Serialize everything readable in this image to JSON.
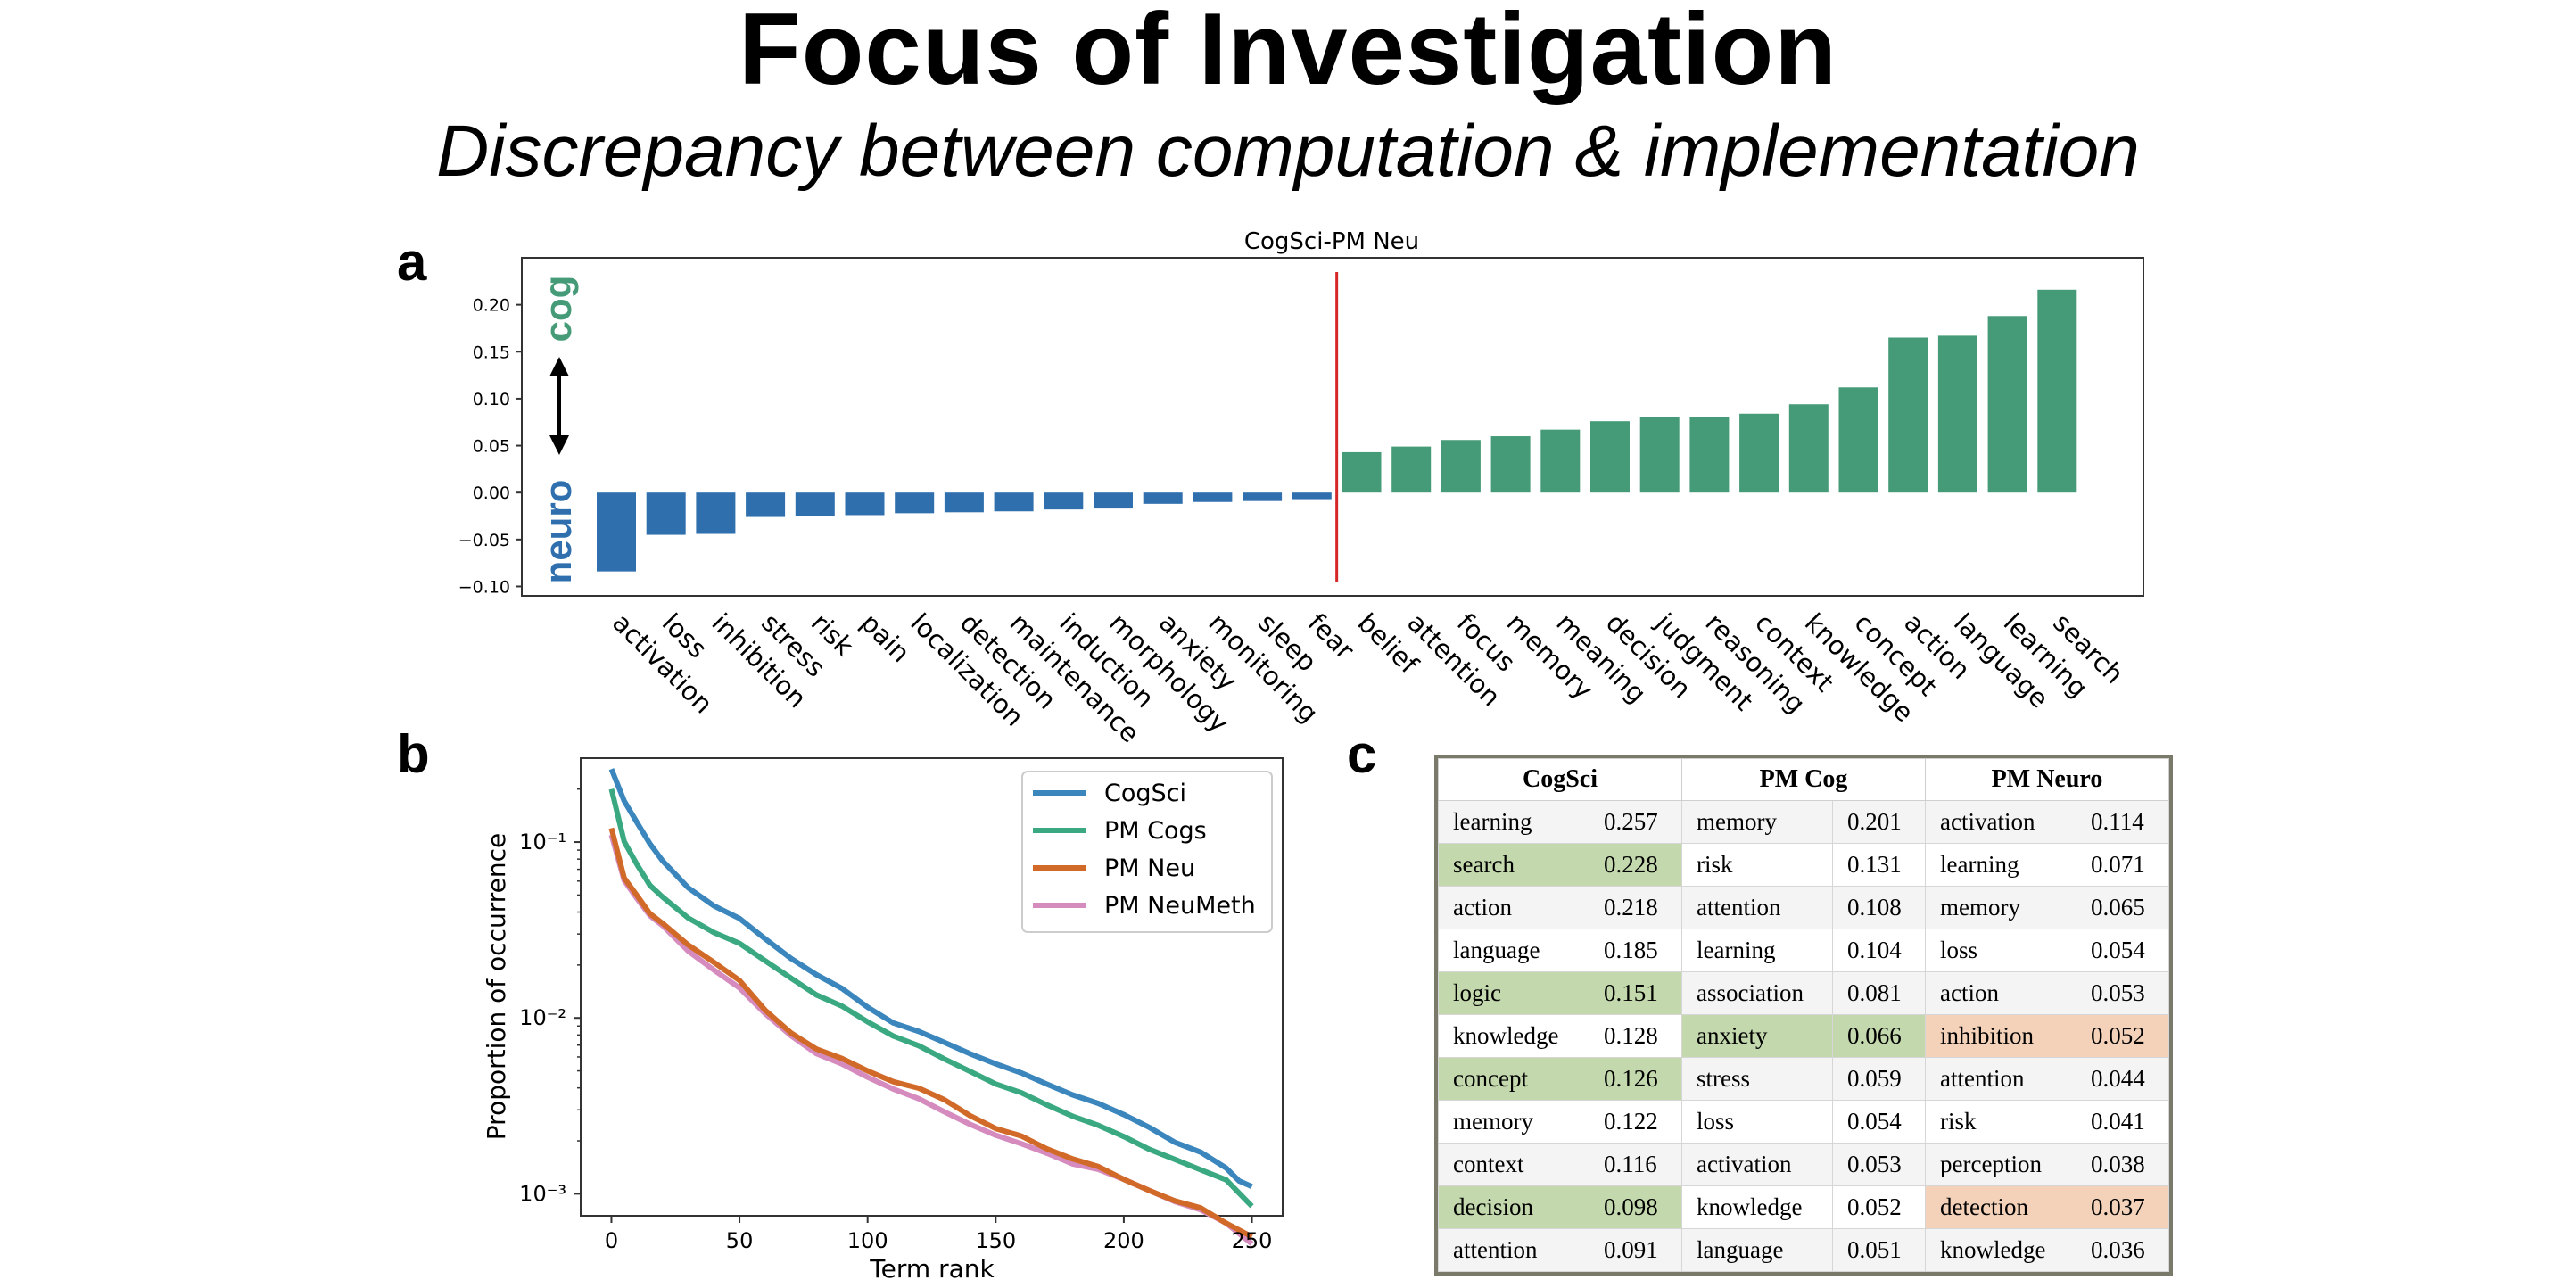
{
  "slide": {
    "title": "Focus of Investigation",
    "subtitle": "Discrepancy between computation & implementation",
    "panel_a_letter": "a",
    "panel_b_letter": "b",
    "panel_c_letter": "c"
  },
  "chart_data": [
    {
      "type": "bar",
      "title": "CogSci-PM Neu",
      "categories": [
        "activation",
        "loss",
        "inhibition",
        "stress",
        "risk",
        "pain",
        "localization",
        "detection",
        "maintenance",
        "induction",
        "morphology",
        "anxiety",
        "monitoring",
        "sleep",
        "fear",
        "belief",
        "attention",
        "focus",
        "memory",
        "meaning",
        "decision",
        "judgment",
        "reasoning",
        "context",
        "knowledge",
        "concept",
        "action",
        "language",
        "learning",
        "search"
      ],
      "values": [
        -0.084,
        -0.045,
        -0.044,
        -0.026,
        -0.025,
        -0.024,
        -0.022,
        -0.021,
        -0.02,
        -0.018,
        -0.017,
        -0.012,
        -0.01,
        -0.009,
        -0.007,
        0.043,
        0.049,
        0.056,
        0.06,
        0.067,
        0.076,
        0.08,
        0.08,
        0.084,
        0.094,
        0.112,
        0.165,
        0.167,
        0.188,
        0.216
      ],
      "ylim": [
        -0.11,
        0.25
      ],
      "yticks": [
        -0.1,
        -0.05,
        0.0,
        0.05,
        0.1,
        0.15,
        0.2
      ],
      "ytick_labels": [
        "−0.10",
        "−0.05",
        "0.00",
        "0.05",
        "0.10",
        "0.15",
        "0.20"
      ],
      "colors": {
        "negative": "#2f6fae",
        "positive": "#459b77",
        "divider": "#d62728"
      },
      "side_labels": {
        "top": "cog",
        "bottom": "neuro",
        "top_color": "#459b77",
        "bottom_color": "#2f6fae"
      }
    },
    {
      "type": "line",
      "xlabel": "Term rank",
      "ylabel": "Proportion of occurrence",
      "yscale": "log",
      "xlim": [
        -12,
        262
      ],
      "ylim": [
        0.00075,
        0.3
      ],
      "xticks": [
        0,
        50,
        100,
        150,
        200,
        250
      ],
      "yticks": [
        0.001,
        0.01,
        0.1
      ],
      "ytick_labels": [
        "10⁻³",
        "10⁻²",
        "10⁻¹"
      ],
      "legend_position": "top-right",
      "series": [
        {
          "name": "CogSci",
          "color": "#3a86bd",
          "x": [
            0,
            5,
            10,
            15,
            20,
            30,
            40,
            50,
            60,
            70,
            80,
            90,
            100,
            110,
            120,
            130,
            140,
            150,
            160,
            170,
            180,
            190,
            200,
            210,
            220,
            230,
            240,
            245,
            250
          ],
          "y": [
            0.26,
            0.17,
            0.13,
            0.1,
            0.077,
            0.055,
            0.044,
            0.036,
            0.028,
            0.022,
            0.018,
            0.0145,
            0.0115,
            0.0095,
            0.0082,
            0.0072,
            0.0063,
            0.0056,
            0.0048,
            0.0042,
            0.0037,
            0.0032,
            0.0028,
            0.0024,
            0.002,
            0.0017,
            0.0014,
            0.0012,
            0.0011
          ]
        },
        {
          "name": "PM Cogs",
          "color": "#3aa982",
          "x": [
            0,
            5,
            10,
            15,
            20,
            30,
            40,
            50,
            60,
            70,
            80,
            90,
            100,
            110,
            120,
            130,
            140,
            150,
            160,
            170,
            180,
            190,
            200,
            210,
            220,
            230,
            240,
            250
          ],
          "y": [
            0.2,
            0.1,
            0.075,
            0.058,
            0.048,
            0.037,
            0.031,
            0.026,
            0.021,
            0.017,
            0.0138,
            0.0115,
            0.0095,
            0.008,
            0.0068,
            0.0058,
            0.005,
            0.0043,
            0.0037,
            0.0032,
            0.0028,
            0.0024,
            0.0021,
            0.0018,
            0.0016,
            0.00135,
            0.0012,
            0.00085
          ]
        },
        {
          "name": "PM Neu",
          "color": "#d16a28",
          "x": [
            0,
            5,
            10,
            15,
            20,
            30,
            40,
            50,
            60,
            70,
            80,
            90,
            100,
            110,
            120,
            130,
            140,
            150,
            160,
            170,
            180,
            190,
            200,
            210,
            220,
            230,
            240,
            250
          ],
          "y": [
            0.12,
            0.062,
            0.05,
            0.04,
            0.034,
            0.026,
            0.021,
            0.016,
            0.011,
            0.0083,
            0.0068,
            0.0058,
            0.005,
            0.0044,
            0.0039,
            0.0034,
            0.0028,
            0.0024,
            0.0021,
            0.0018,
            0.0016,
            0.0014,
            0.0012,
            0.00105,
            0.00093,
            0.00082,
            0.00068,
            0.00057
          ]
        },
        {
          "name": "PM NeuMeth",
          "color": "#d58bbd",
          "x": [
            0,
            5,
            10,
            15,
            20,
            30,
            40,
            50,
            60,
            70,
            80,
            90,
            100,
            110,
            120,
            130,
            140,
            150,
            160,
            170,
            180,
            190,
            200,
            210,
            220,
            230,
            240,
            250
          ],
          "y": [
            0.11,
            0.06,
            0.048,
            0.039,
            0.033,
            0.024,
            0.019,
            0.0145,
            0.0105,
            0.008,
            0.0064,
            0.0054,
            0.0046,
            0.004,
            0.0034,
            0.0029,
            0.0025,
            0.0022,
            0.0019,
            0.0017,
            0.0015,
            0.00135,
            0.0012,
            0.00105,
            0.00092,
            0.0008,
            0.00068,
            0.00052
          ]
        }
      ]
    },
    {
      "type": "table",
      "columns": [
        "CogSci",
        "PM Cog",
        "PM Neuro"
      ],
      "rows": [
        [
          {
            "term": "learning",
            "value": "0.257"
          },
          {
            "term": "memory",
            "value": "0.201"
          },
          {
            "term": "activation",
            "value": "0.114"
          }
        ],
        [
          {
            "term": "search",
            "value": "0.228",
            "highlight": "green"
          },
          {
            "term": "risk",
            "value": "0.131"
          },
          {
            "term": "learning",
            "value": "0.071"
          }
        ],
        [
          {
            "term": "action",
            "value": "0.218"
          },
          {
            "term": "attention",
            "value": "0.108"
          },
          {
            "term": "memory",
            "value": "0.065"
          }
        ],
        [
          {
            "term": "language",
            "value": "0.185"
          },
          {
            "term": "learning",
            "value": "0.104"
          },
          {
            "term": "loss",
            "value": "0.054"
          }
        ],
        [
          {
            "term": "logic",
            "value": "0.151",
            "highlight": "green"
          },
          {
            "term": "association",
            "value": "0.081"
          },
          {
            "term": "action",
            "value": "0.053"
          }
        ],
        [
          {
            "term": "knowledge",
            "value": "0.128"
          },
          {
            "term": "anxiety",
            "value": "0.066",
            "highlight": "green"
          },
          {
            "term": "inhibition",
            "value": "0.052",
            "highlight": "peach"
          }
        ],
        [
          {
            "term": "concept",
            "value": "0.126",
            "highlight": "green"
          },
          {
            "term": "stress",
            "value": "0.059"
          },
          {
            "term": "attention",
            "value": "0.044"
          }
        ],
        [
          {
            "term": "memory",
            "value": "0.122"
          },
          {
            "term": "loss",
            "value": "0.054"
          },
          {
            "term": "risk",
            "value": "0.041"
          }
        ],
        [
          {
            "term": "context",
            "value": "0.116"
          },
          {
            "term": "activation",
            "value": "0.053"
          },
          {
            "term": "perception",
            "value": "0.038"
          }
        ],
        [
          {
            "term": "decision",
            "value": "0.098",
            "highlight": "green"
          },
          {
            "term": "knowledge",
            "value": "0.052"
          },
          {
            "term": "detection",
            "value": "0.037",
            "highlight": "peach"
          }
        ],
        [
          {
            "term": "attention",
            "value": "0.091"
          },
          {
            "term": "language",
            "value": "0.051"
          },
          {
            "term": "knowledge",
            "value": "0.036"
          }
        ]
      ]
    }
  ]
}
